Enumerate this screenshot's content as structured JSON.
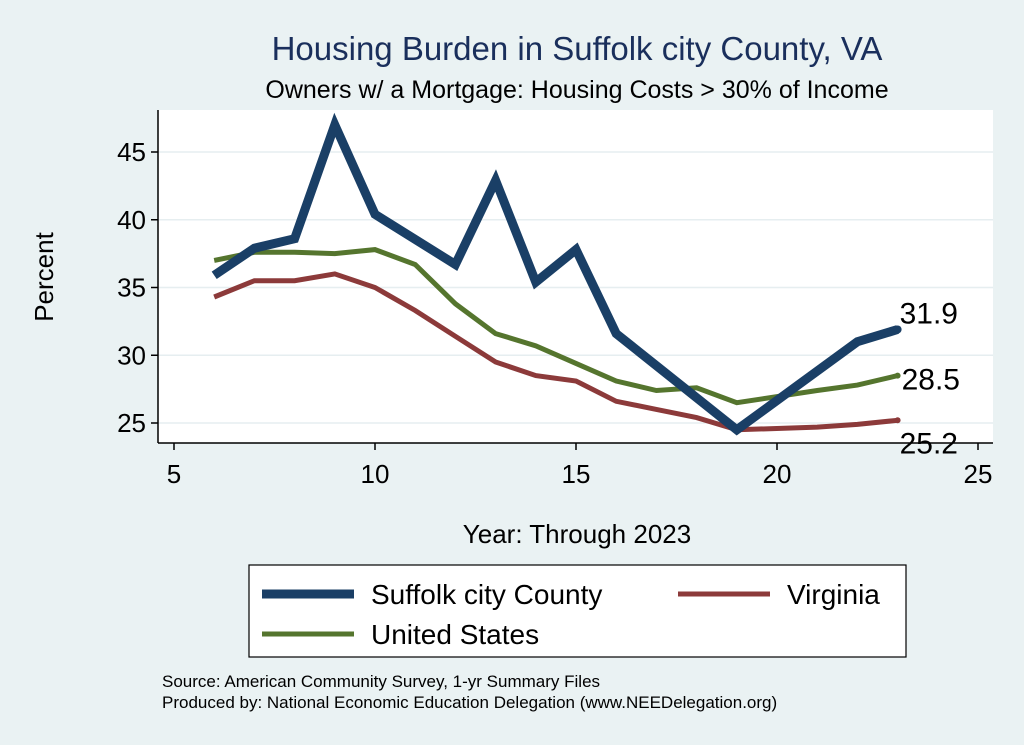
{
  "chart_data": {
    "type": "line",
    "title": "Housing Burden in Suffolk city County, VA",
    "subtitle": "Owners w/ a Mortgage: Housing Costs > 30% of Income",
    "xlabel": "Year: Through 2023",
    "ylabel": "Percent",
    "xlim": [
      5,
      25
    ],
    "ylim": [
      23.5,
      48
    ],
    "xticks": [
      5,
      10,
      15,
      20,
      25
    ],
    "yticks": [
      25,
      30,
      35,
      40,
      45
    ],
    "grid": true,
    "legend_position": "bottom",
    "series": [
      {
        "name": "Suffolk city County",
        "color": "#1a3f66",
        "x": [
          6,
          7,
          8,
          9,
          10,
          12,
          13,
          14,
          15,
          16,
          19,
          22,
          23
        ],
        "y": [
          35.9,
          37.9,
          38.6,
          47.0,
          40.4,
          36.7,
          42.9,
          35.4,
          37.8,
          31.6,
          24.5,
          31.0,
          31.9
        ],
        "end_label": "31.9"
      },
      {
        "name": "Virginia",
        "color": "#8c3a3a",
        "x": [
          6,
          7,
          8,
          9,
          10,
          11,
          12,
          13,
          14,
          15,
          16,
          17,
          18,
          19,
          21,
          22,
          23
        ],
        "y": [
          34.3,
          35.5,
          35.5,
          36.0,
          35.0,
          33.3,
          31.4,
          29.5,
          28.5,
          28.1,
          26.6,
          26.0,
          25.4,
          24.5,
          24.7,
          24.9,
          25.2
        ],
        "end_label": "25.2"
      },
      {
        "name": "United States",
        "color": "#55752e",
        "x": [
          6,
          7,
          8,
          9,
          10,
          11,
          12,
          13,
          14,
          15,
          16,
          17,
          18,
          19,
          21,
          22,
          23
        ],
        "y": [
          37.0,
          37.6,
          37.6,
          37.5,
          37.8,
          36.7,
          33.8,
          31.6,
          30.7,
          29.4,
          28.1,
          27.4,
          27.6,
          26.5,
          27.4,
          27.8,
          28.5
        ],
        "end_label": "28.5"
      }
    ]
  },
  "source_line": "Source: American Community Survey, 1-yr Summary Files",
  "produced_line": "Produced by: National Economic Education Delegation (www.NEEDelegation.org)"
}
